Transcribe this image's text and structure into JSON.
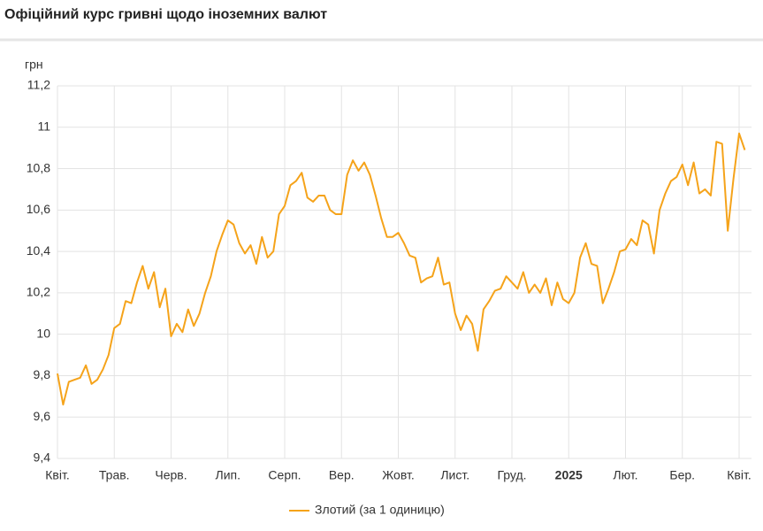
{
  "chart_data": {
    "type": "line",
    "title": "Офіційний курс гривні щодо іноземних валют",
    "y_axis_label": "грн",
    "categories": [
      "Квіт.",
      null,
      null,
      null,
      null,
      null,
      null,
      null,
      null,
      null,
      "Трав.",
      null,
      null,
      null,
      null,
      null,
      null,
      null,
      null,
      null,
      "Черв.",
      null,
      null,
      null,
      null,
      null,
      null,
      null,
      null,
      null,
      "Лип.",
      null,
      null,
      null,
      null,
      null,
      null,
      null,
      null,
      null,
      "Серп.",
      null,
      null,
      null,
      null,
      null,
      null,
      null,
      null,
      null,
      "Вер.",
      null,
      null,
      null,
      null,
      null,
      null,
      null,
      null,
      null,
      "Жовт.",
      null,
      null,
      null,
      null,
      null,
      null,
      null,
      null,
      null,
      "Лист.",
      null,
      null,
      null,
      null,
      null,
      null,
      null,
      null,
      null,
      "Груд.",
      null,
      null,
      null,
      null,
      null,
      null,
      null,
      null,
      null,
      "2025",
      null,
      null,
      null,
      null,
      null,
      null,
      null,
      null,
      null,
      "Лют.",
      null,
      null,
      null,
      null,
      null,
      null,
      null,
      null,
      null,
      "Бер.",
      null,
      null,
      null,
      null,
      null,
      null,
      null,
      null,
      null,
      "Квіт.",
      null
    ],
    "series": [
      {
        "name": "Злотий (за 1 одиницю)",
        "color": "#f5a31a",
        "values": [
          9.81,
          9.66,
          9.77,
          9.78,
          9.79,
          9.85,
          9.76,
          9.78,
          9.83,
          9.9,
          10.03,
          10.05,
          10.16,
          10.15,
          10.25,
          10.33,
          10.22,
          10.3,
          10.13,
          10.22,
          9.99,
          10.05,
          10.01,
          10.12,
          10.04,
          10.1,
          10.2,
          10.28,
          10.4,
          10.48,
          10.55,
          10.53,
          10.44,
          10.39,
          10.43,
          10.34,
          10.47,
          10.37,
          10.4,
          10.58,
          10.62,
          10.72,
          10.74,
          10.78,
          10.66,
          10.64,
          10.67,
          10.67,
          10.6,
          10.58,
          10.58,
          10.77,
          10.84,
          10.79,
          10.83,
          10.77,
          10.67,
          10.56,
          10.47,
          10.47,
          10.49,
          10.44,
          10.38,
          10.37,
          10.25,
          10.27,
          10.28,
          10.37,
          10.24,
          10.25,
          10.1,
          10.02,
          10.09,
          10.05,
          9.92,
          10.12,
          10.16,
          10.21,
          10.22,
          10.28,
          10.25,
          10.22,
          10.3,
          10.2,
          10.24,
          10.2,
          10.27,
          10.14,
          10.25,
          10.17,
          10.15,
          10.2,
          10.37,
          10.44,
          10.34,
          10.33,
          10.15,
          10.22,
          10.3,
          10.4,
          10.41,
          10.46,
          10.43,
          10.55,
          10.53,
          10.39,
          10.6,
          10.68,
          10.74,
          10.76,
          10.82,
          10.72,
          10.83,
          10.68,
          10.7,
          10.67,
          10.93,
          10.92,
          10.5,
          10.75,
          10.97,
          10.89
        ]
      }
    ],
    "ylim": [
      9.4,
      11.2
    ],
    "yticks": [
      {
        "value": 9.4,
        "label": "9,4"
      },
      {
        "value": 9.6,
        "label": "9,6"
      },
      {
        "value": 9.8,
        "label": "9,8"
      },
      10,
      {
        "value": 10.2,
        "label": "10,2"
      },
      {
        "value": 10.4,
        "label": "10,4"
      },
      {
        "value": 10.6,
        "label": "10,6"
      },
      {
        "value": 10.8,
        "label": "10,8"
      },
      11,
      {
        "value": 11.2,
        "label": "11,2"
      }
    ],
    "grid": true
  }
}
